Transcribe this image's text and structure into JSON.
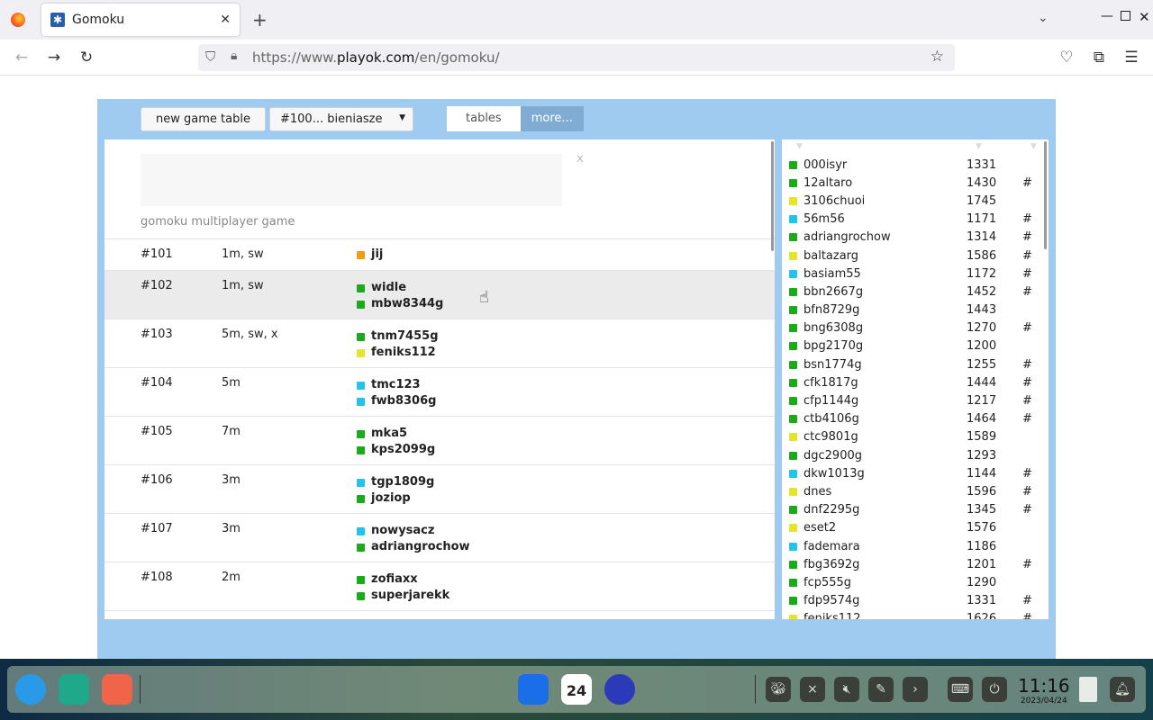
{
  "browser": {
    "tab_title": "Gomoku",
    "url_prefix": "https://www.",
    "url_domain": "playok.com",
    "url_path": "/en/gomoku/"
  },
  "toolbar": {
    "new_game_label": "new game table",
    "room_select": "#100... bieniasze",
    "tab_tables": "tables",
    "tab_more": "more..."
  },
  "lobby": {
    "close": "x",
    "caption": "gomoku multiplayer game"
  },
  "colors": {
    "green": "#1aaa1a",
    "yellow": "#e4e42a",
    "cyan": "#22c4ea",
    "orange": "#f29a1a",
    "panel_bg": "#9ecbef"
  },
  "tables": [
    {
      "id": "#101",
      "options": "1m, sw",
      "players": [
        {
          "name": "jij",
          "color": "orange"
        }
      ]
    },
    {
      "id": "#102",
      "options": "1m, sw",
      "players": [
        {
          "name": "widle",
          "color": "green"
        },
        {
          "name": "mbw8344g",
          "color": "green"
        }
      ],
      "highlighted": true
    },
    {
      "id": "#103",
      "options": "5m, sw, x",
      "players": [
        {
          "name": "tnm7455g",
          "color": "green"
        },
        {
          "name": "feniks112",
          "color": "yellow"
        }
      ]
    },
    {
      "id": "#104",
      "options": "5m",
      "players": [
        {
          "name": "tmc123",
          "color": "cyan"
        },
        {
          "name": "fwb8306g",
          "color": "cyan"
        }
      ]
    },
    {
      "id": "#105",
      "options": "7m",
      "players": [
        {
          "name": "mka5",
          "color": "green"
        },
        {
          "name": "kps2099g",
          "color": "green"
        }
      ]
    },
    {
      "id": "#106",
      "options": "3m",
      "players": [
        {
          "name": "tgp1809g",
          "color": "cyan"
        },
        {
          "name": "joziop",
          "color": "green"
        }
      ]
    },
    {
      "id": "#107",
      "options": "3m",
      "players": [
        {
          "name": "nowysacz",
          "color": "cyan"
        },
        {
          "name": "adriangrochow",
          "color": "green"
        }
      ]
    },
    {
      "id": "#108",
      "options": "2m",
      "players": [
        {
          "name": "zofiaxx",
          "color": "green"
        },
        {
          "name": "superjarekk",
          "color": "green"
        }
      ]
    }
  ],
  "users": [
    {
      "name": "000isyr",
      "rating": "1331",
      "table": "",
      "color": "green"
    },
    {
      "name": "12altaro",
      "rating": "1430",
      "table": "#",
      "color": "green"
    },
    {
      "name": "3106chuoi",
      "rating": "1745",
      "table": "",
      "color": "yellow"
    },
    {
      "name": "56m56",
      "rating": "1171",
      "table": "#",
      "color": "cyan"
    },
    {
      "name": "adriangrochow",
      "rating": "1314",
      "table": "#",
      "color": "green"
    },
    {
      "name": "baltazarg",
      "rating": "1586",
      "table": "#",
      "color": "yellow"
    },
    {
      "name": "basiam55",
      "rating": "1172",
      "table": "#",
      "color": "cyan"
    },
    {
      "name": "bbn2667g",
      "rating": "1452",
      "table": "#",
      "color": "green"
    },
    {
      "name": "bfn8729g",
      "rating": "1443",
      "table": "",
      "color": "green"
    },
    {
      "name": "bng6308g",
      "rating": "1270",
      "table": "#",
      "color": "green"
    },
    {
      "name": "bpg2170g",
      "rating": "1200",
      "table": "",
      "color": "green"
    },
    {
      "name": "bsn1774g",
      "rating": "1255",
      "table": "#",
      "color": "green"
    },
    {
      "name": "cfk1817g",
      "rating": "1444",
      "table": "#",
      "color": "green"
    },
    {
      "name": "cfp1144g",
      "rating": "1217",
      "table": "#",
      "color": "green"
    },
    {
      "name": "ctb4106g",
      "rating": "1464",
      "table": "#",
      "color": "green"
    },
    {
      "name": "ctc9801g",
      "rating": "1589",
      "table": "",
      "color": "yellow"
    },
    {
      "name": "dgc2900g",
      "rating": "1293",
      "table": "",
      "color": "green"
    },
    {
      "name": "dkw1013g",
      "rating": "1144",
      "table": "#",
      "color": "cyan"
    },
    {
      "name": "dnes",
      "rating": "1596",
      "table": "#",
      "color": "yellow"
    },
    {
      "name": "dnf2295g",
      "rating": "1345",
      "table": "#",
      "color": "green"
    },
    {
      "name": "eset2",
      "rating": "1576",
      "table": "",
      "color": "yellow"
    },
    {
      "name": "fademara",
      "rating": "1186",
      "table": "",
      "color": "cyan"
    },
    {
      "name": "fbg3692g",
      "rating": "1201",
      "table": "#",
      "color": "green"
    },
    {
      "name": "fcp555g",
      "rating": "1290",
      "table": "",
      "color": "green"
    },
    {
      "name": "fdp9574g",
      "rating": "1331",
      "table": "#",
      "color": "green"
    },
    {
      "name": "feniks112",
      "rating": "1626",
      "table": "#",
      "color": "yellow"
    }
  ],
  "taskbar": {
    "time": "11:16",
    "date": "2023/04/24",
    "calendar_day": "24"
  }
}
